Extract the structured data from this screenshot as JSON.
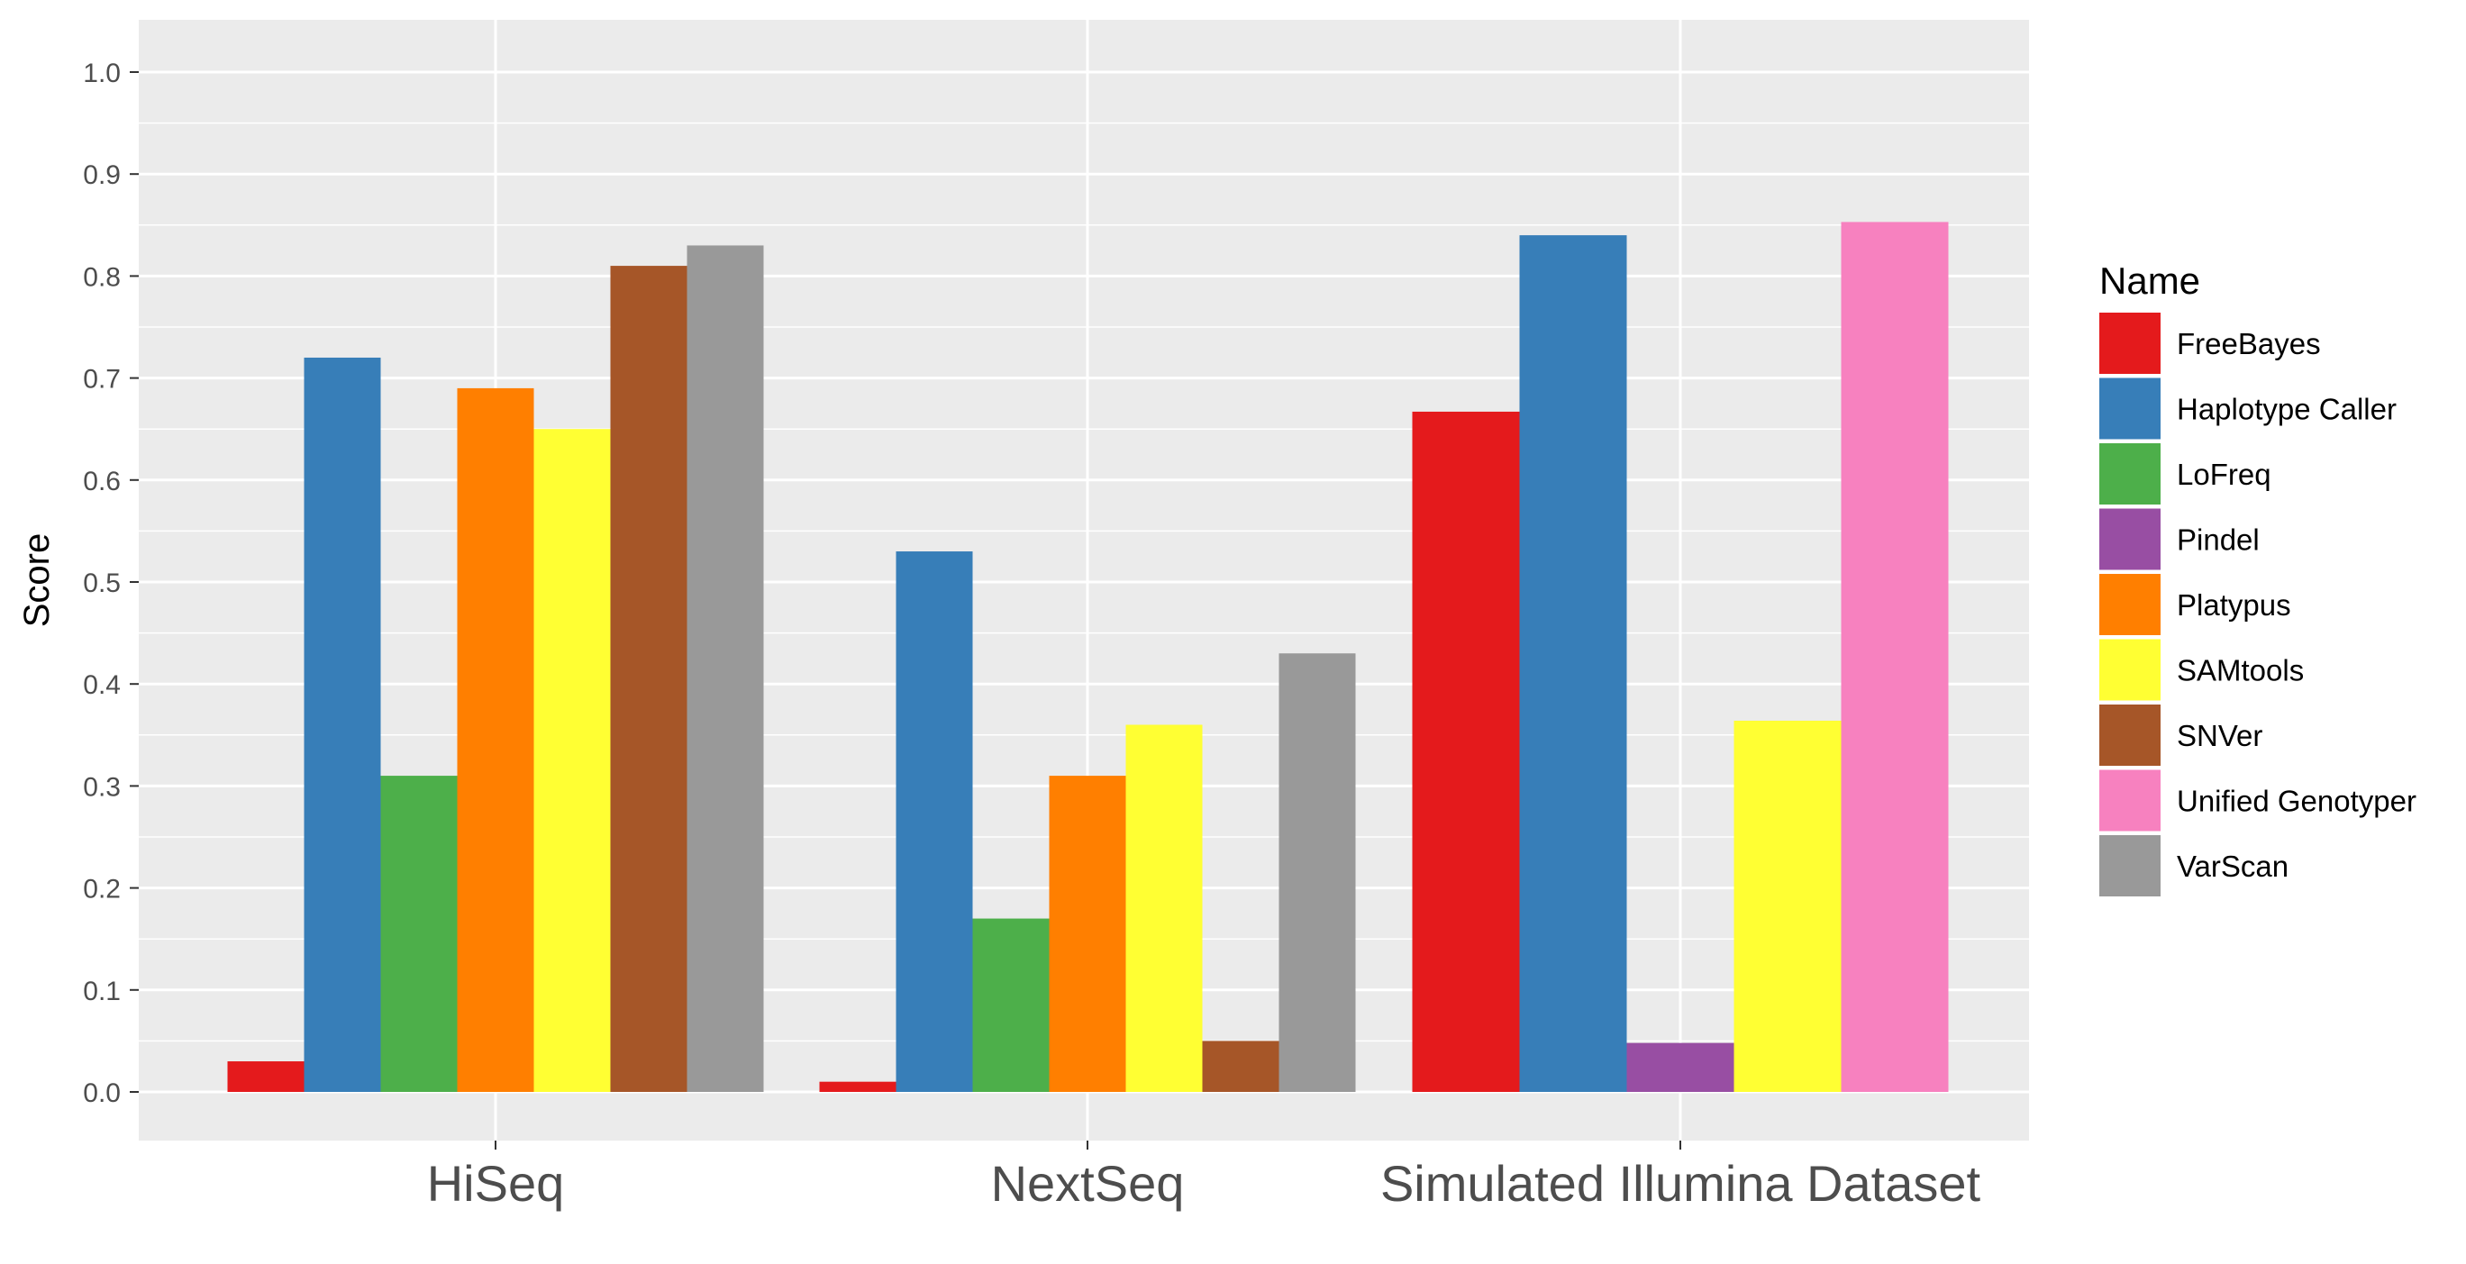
{
  "chart_data": {
    "type": "bar",
    "categories": [
      "HiSeq",
      "NextSeq",
      "Simulated Illumina Dataset"
    ],
    "ylabel": "Score",
    "xlabel": "",
    "ylim": [
      0,
      1.0
    ],
    "yticks": [
      "0.0",
      "0.1",
      "0.2",
      "0.3",
      "0.4",
      "0.5",
      "0.6",
      "0.7",
      "0.8",
      "0.9",
      "1.0"
    ],
    "grid": true,
    "legend": {
      "title": "Name",
      "position": "right"
    },
    "series": [
      {
        "name": "FreeBayes",
        "color": "#e41a1c",
        "values": [
          0.03,
          0.01,
          0.667
        ]
      },
      {
        "name": "Haplotype Caller",
        "color": "#377eb8",
        "values": [
          0.72,
          0.53,
          0.84
        ]
      },
      {
        "name": "LoFreq",
        "color": "#4daf4a",
        "values": [
          0.31,
          0.17,
          null
        ]
      },
      {
        "name": "Pindel",
        "color": "#984ea3",
        "values": [
          null,
          null,
          0.048
        ]
      },
      {
        "name": "Platypus",
        "color": "#ff7f00",
        "values": [
          0.69,
          0.31,
          null
        ]
      },
      {
        "name": "SAMtools",
        "color": "#ffff33",
        "values": [
          0.65,
          0.36,
          0.364
        ]
      },
      {
        "name": "SNVer",
        "color": "#a65628",
        "values": [
          0.81,
          0.05,
          null
        ]
      },
      {
        "name": "Unified Genotyper",
        "color": "#f781bf",
        "values": [
          null,
          null,
          0.853
        ]
      },
      {
        "name": "VarScan",
        "color": "#999999",
        "values": [
          0.83,
          0.43,
          null
        ]
      }
    ]
  }
}
